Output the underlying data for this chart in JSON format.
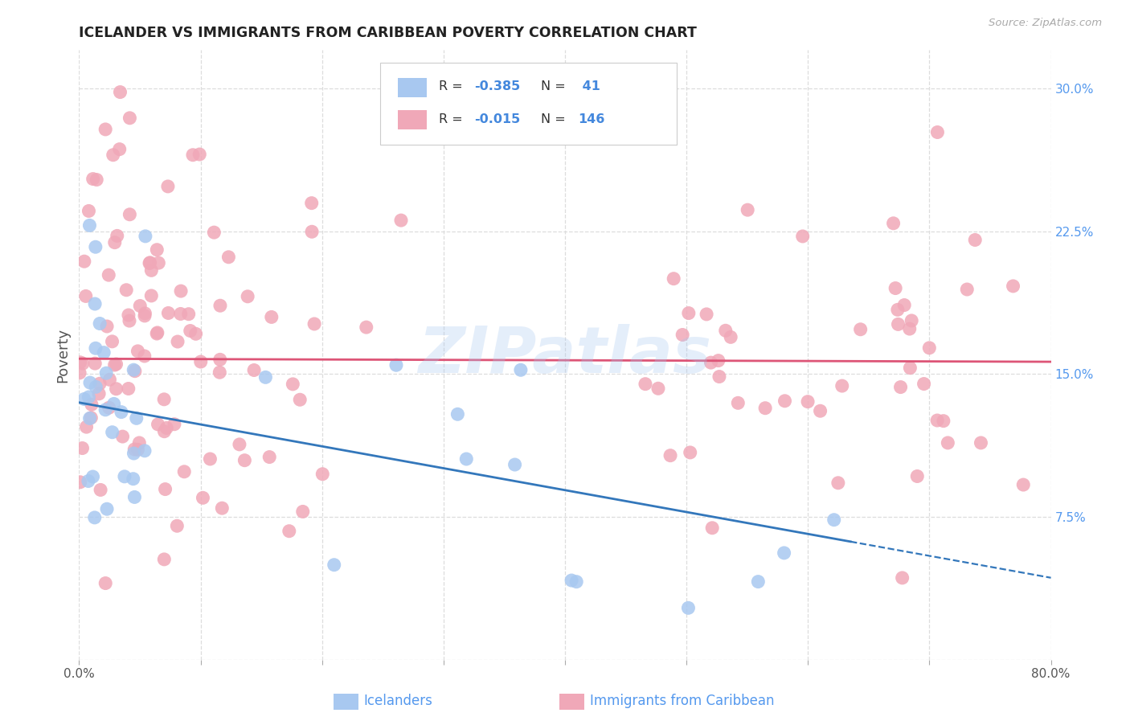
{
  "title": "ICELANDER VS IMMIGRANTS FROM CARIBBEAN POVERTY CORRELATION CHART",
  "source": "Source: ZipAtlas.com",
  "ylabel": "Poverty",
  "xlim": [
    0.0,
    0.8
  ],
  "ylim": [
    0.0,
    0.32
  ],
  "x_ticks": [
    0.0,
    0.1,
    0.2,
    0.3,
    0.4,
    0.5,
    0.6,
    0.7,
    0.8
  ],
  "x_tick_labels": [
    "0.0%",
    "",
    "",
    "",
    "",
    "",
    "",
    "",
    "80.0%"
  ],
  "y_ticks": [
    0.0,
    0.075,
    0.15,
    0.225,
    0.3
  ],
  "y_tick_labels": [
    "",
    "7.5%",
    "15.0%",
    "22.5%",
    "30.0%"
  ],
  "background_color": "#ffffff",
  "grid_color": "#dddddd",
  "watermark": "ZIPatlas",
  "legend_line1": "R = -0.385   N =   41",
  "legend_line2": "R = -0.015   N = 146",
  "icelander_color": "#a8c8f0",
  "caribbean_color": "#f0a8b8",
  "icelander_line_color": "#3377bb",
  "caribbean_line_color": "#dd5577",
  "icelander_N": 41,
  "caribbean_N": 146,
  "ice_intercept": 0.135,
  "ice_slope": -0.115,
  "car_intercept": 0.158,
  "car_slope": -0.002,
  "tick_label_color": "#5599ee",
  "title_color": "#222222",
  "source_color": "#aaaaaa"
}
